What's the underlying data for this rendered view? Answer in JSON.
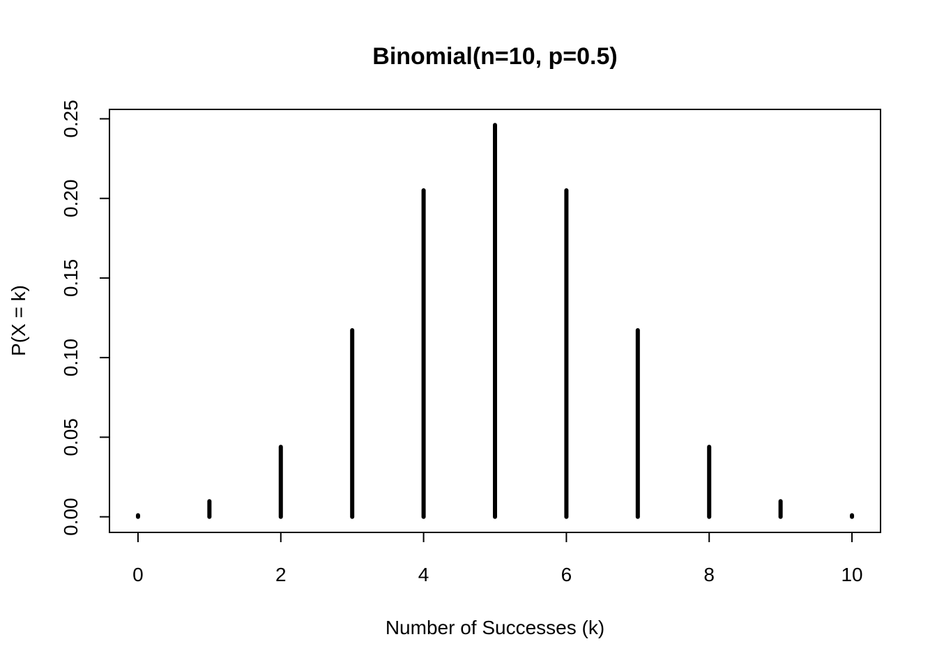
{
  "chart_data": {
    "type": "bar",
    "title": "Binomial(n=10, p=0.5)",
    "xlabel": "Number of Successes (k)",
    "ylabel": "P(X = k)",
    "x": [
      0,
      1,
      2,
      3,
      4,
      5,
      6,
      7,
      8,
      9,
      10
    ],
    "values": [
      0.000977,
      0.009766,
      0.043945,
      0.117188,
      0.205078,
      0.246094,
      0.205078,
      0.117188,
      0.043945,
      0.009766,
      0.000977
    ],
    "xticks": [
      0,
      2,
      4,
      6,
      8,
      10
    ],
    "xtick_labels": [
      "0",
      "2",
      "4",
      "6",
      "8",
      "10"
    ],
    "yticks": [
      0,
      0.05,
      0.1,
      0.15,
      0.2,
      0.25
    ],
    "ytick_labels": [
      "0.00",
      "0.05",
      "0.10",
      "0.15",
      "0.20",
      "0.25"
    ],
    "xlim": [
      -0.4,
      10.4
    ],
    "ylim": [
      -0.0098,
      0.2559
    ],
    "grid": false,
    "legend": "none",
    "color": "#000000"
  }
}
